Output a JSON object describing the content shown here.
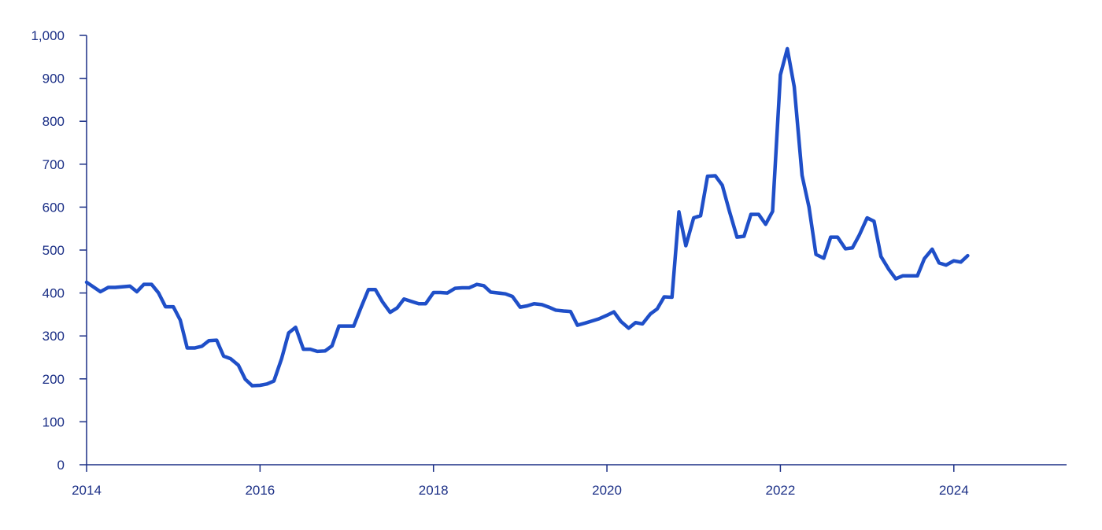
{
  "colors": {
    "line": "#1f4fc8",
    "axis": "#1b2f86",
    "tick_text": "#1b2f86",
    "background": "#ffffff"
  },
  "chart_data": {
    "type": "line",
    "title": "",
    "xlabel": "",
    "ylabel": "",
    "grid": false,
    "legend": "none",
    "xlim": [
      2014.0,
      2025.3
    ],
    "ylim": [
      0,
      1000
    ],
    "x_ticks": [
      2014,
      2016,
      2018,
      2020,
      2022,
      2024
    ],
    "x_tick_labels": [
      "2014",
      "2016",
      "2018",
      "2020",
      "2022",
      "2024"
    ],
    "y_ticks": [
      0,
      100,
      200,
      300,
      400,
      500,
      600,
      700,
      800,
      900,
      1000
    ],
    "y_tick_labels": [
      "0",
      "100",
      "200",
      "300",
      "400",
      "500",
      "600",
      "700",
      "800",
      "900",
      "1,000"
    ],
    "series": [
      {
        "x": [
          2014.0,
          2014.16,
          2014.25,
          2014.33,
          2014.5,
          2014.58,
          2014.66,
          2014.75,
          2014.83,
          2014.91,
          2015.0,
          2015.08,
          2015.16,
          2015.25,
          2015.33,
          2015.41,
          2015.5,
          2015.58,
          2015.66,
          2015.75,
          2015.83,
          2015.91,
          2016.0,
          2016.08,
          2016.16,
          2016.25,
          2016.33,
          2016.41,
          2016.5,
          2016.58,
          2016.66,
          2016.75,
          2016.83,
          2016.91,
          2017.0,
          2017.08,
          2017.16,
          2017.25,
          2017.33,
          2017.41,
          2017.5,
          2017.58,
          2017.66,
          2017.75,
          2017.83,
          2017.91,
          2018.0,
          2018.08,
          2018.16,
          2018.25,
          2018.33,
          2018.41,
          2018.5,
          2018.58,
          2018.66,
          2018.75,
          2018.83,
          2018.91,
          2019.0,
          2019.08,
          2019.16,
          2019.25,
          2019.33,
          2019.41,
          2019.5,
          2019.58,
          2019.66,
          2019.75,
          2019.83,
          2019.91,
          2020.0,
          2020.08,
          2020.16,
          2020.25,
          2020.33,
          2020.41,
          2020.5,
          2020.58,
          2020.66,
          2020.75,
          2020.83,
          2020.91,
          2021.0,
          2021.08,
          2021.16,
          2021.25,
          2021.33,
          2021.41,
          2021.5,
          2021.58,
          2021.66,
          2021.75,
          2021.83,
          2021.91,
          2022.0,
          2022.08,
          2022.16,
          2022.25,
          2022.33,
          2022.41,
          2022.5,
          2022.58,
          2022.66,
          2022.75,
          2022.83,
          2022.91,
          2023.0,
          2023.08,
          2023.16,
          2023.25,
          2023.33,
          2023.41,
          2023.5,
          2023.58,
          2023.66,
          2023.75,
          2023.83,
          2023.91,
          2024.0,
          2024.08,
          2024.16
        ],
        "y": [
          425,
          403,
          413,
          413,
          416,
          403,
          420,
          420,
          400,
          368,
          368,
          337,
          272,
          272,
          276,
          289,
          290,
          253,
          247,
          232,
          199,
          184,
          185,
          188,
          195,
          248,
          307,
          320,
          269,
          269,
          264,
          265,
          277,
          323,
          323,
          323,
          364,
          408,
          408,
          380,
          355,
          365,
          386,
          380,
          375,
          375,
          401,
          401,
          400,
          411,
          412,
          412,
          420,
          417,
          402,
          400,
          398,
          392,
          367,
          370,
          375,
          373,
          367,
          360,
          358,
          357,
          325,
          330,
          335,
          340,
          348,
          356,
          334,
          318,
          331,
          328,
          351,
          363,
          391,
          390,
          589,
          510,
          575,
          580,
          672,
          673,
          651,
          592,
          530,
          532,
          583,
          583,
          560,
          590,
          908,
          969,
          880,
          674,
          600,
          490,
          481,
          530,
          530,
          503,
          505,
          535,
          575,
          567,
          485,
          455,
          433,
          440,
          440,
          440,
          480,
          502,
          470,
          465,
          475,
          472,
          487
        ]
      }
    ]
  }
}
